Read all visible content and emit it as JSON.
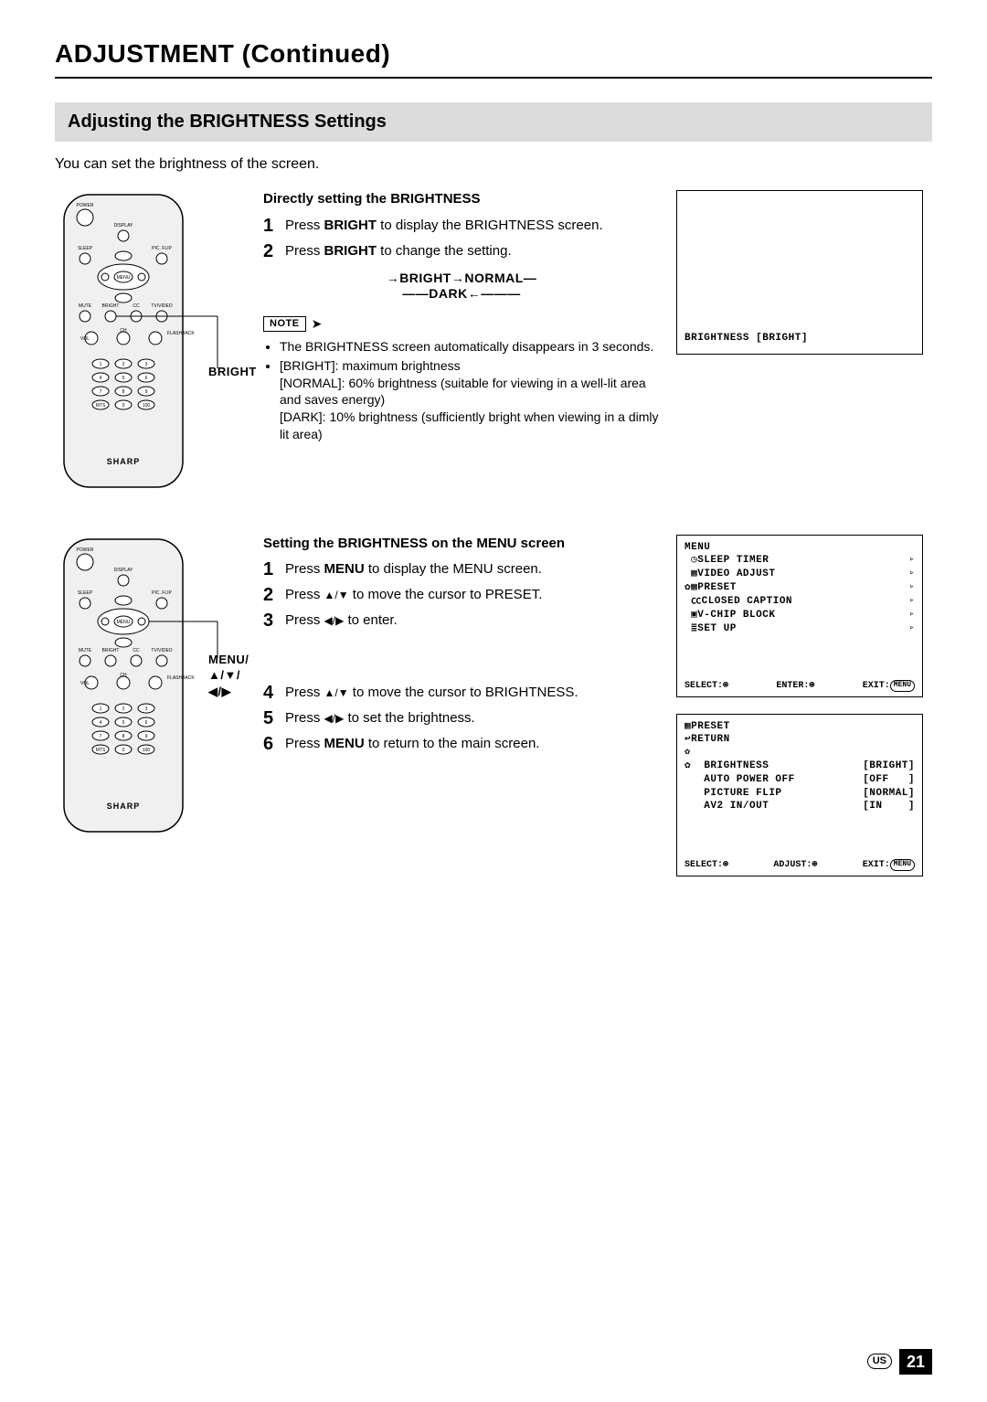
{
  "page": {
    "title": "ADJUSTMENT (Continued)",
    "section_bar": "Adjusting the BRIGHTNESS Settings",
    "intro": "You can set the brightness of the screen.",
    "number": "21",
    "region": "US"
  },
  "remote": {
    "brand": "SHARP",
    "buttons": {
      "power": "POWER",
      "display": "DISPLAY",
      "sleep": "SLEEP",
      "picflip": "PIC. FLIP",
      "menu": "MENU",
      "mute": "MUTE",
      "bright": "BRIGHT",
      "cc": "CC",
      "tvvideo": "TV/VIDEO",
      "vol": "VOL",
      "ch": "CH",
      "flashback": "FLASHBACK",
      "mts": "MTS",
      "hundred": "100"
    },
    "callout1": "BRIGHT",
    "callout2_line1": "MENU/",
    "callout2_line2": "▲/▼/◀/▶"
  },
  "directly": {
    "heading": "Directly setting the BRIGHTNESS",
    "step1_a": "Press ",
    "step1_b": "BRIGHT",
    "step1_c": " to display the BRIGHTNESS screen.",
    "step2_a": "Press ",
    "step2_b": "BRIGHT",
    "step2_c": " to change the setting.",
    "cycle_main": "→BRIGHT→NORMAL—",
    "cycle_dark": "——DARK←———",
    "note_label": "NOTE",
    "note1": "The BRIGHTNESS screen automatically disappears in 3 seconds.",
    "note2": "[BRIGHT]: maximum brightness",
    "note2b": "[NORMAL]: 60% brightness (suitable for viewing in a well-lit area and saves energy)",
    "note2c": "[DARK]: 10% brightness (sufficiently bright when viewing in a dimly lit area)"
  },
  "screen1": {
    "line": "BRIGHTNESS [BRIGHT]"
  },
  "menu_method": {
    "heading": "Setting the BRIGHTNESS on the MENU screen",
    "step1_a": "Press ",
    "step1_b": "MENU",
    "step1_c": " to display the MENU screen.",
    "step2_a": "Press ",
    "step2_arrows": "▲/▼",
    "step2_c": " to move the cursor to PRESET.",
    "step3_a": "Press ",
    "step3_arrows": "◀/▶",
    "step3_c": " to enter.",
    "step4_a": "Press ",
    "step4_arrows": "▲/▼",
    "step4_c": " to move the cursor to BRIGHTNESS.",
    "step5_a": "Press ",
    "step5_arrows": "◀/▶",
    "step5_c": " to set the brightness.",
    "step6_a": "Press ",
    "step6_b": "MENU",
    "step6_c": " to return to the main screen."
  },
  "screen_menu": {
    "title": "  MENU",
    "items": [
      {
        "icon": "◷",
        "label": "SLEEP TIMER",
        "mark": "▹"
      },
      {
        "icon": "▦",
        "label": "VIDEO ADJUST",
        "mark": "▹"
      },
      {
        "icon": "✿▦",
        "label": "PRESET",
        "mark": "▹",
        "hl": true
      },
      {
        "icon": "㏄",
        "label": "CLOSED CAPTION",
        "mark": "▹"
      },
      {
        "icon": "▣",
        "label": "V-CHIP BLOCK",
        "mark": "▹"
      },
      {
        "icon": "≣",
        "label": "SET UP",
        "mark": "▹"
      }
    ],
    "footer_select": "SELECT:⊛",
    "footer_enter": "ENTER:⊛",
    "footer_exit": "EXIT:MENU"
  },
  "screen_preset": {
    "title": " ▦PRESET",
    "return": " ↩RETURN",
    "rows": [
      {
        "label": "  BRIGHTNESS",
        "val": "[BRIGHT]",
        "hl": true
      },
      {
        "label": "  AUTO POWER OFF",
        "val": "[OFF   ]"
      },
      {
        "label": "  PICTURE FLIP",
        "val": "[NORMAL]"
      },
      {
        "label": "  AV2 IN/OUT",
        "val": "[IN    ]"
      }
    ],
    "footer_select": "SELECT:⊛",
    "footer_adjust": "ADJUST:⊛",
    "footer_exit": "EXIT:MENU"
  },
  "colors": {
    "bar_bg": "#dcdcdc",
    "text": "#000000",
    "page_bg": "#ffffff"
  }
}
